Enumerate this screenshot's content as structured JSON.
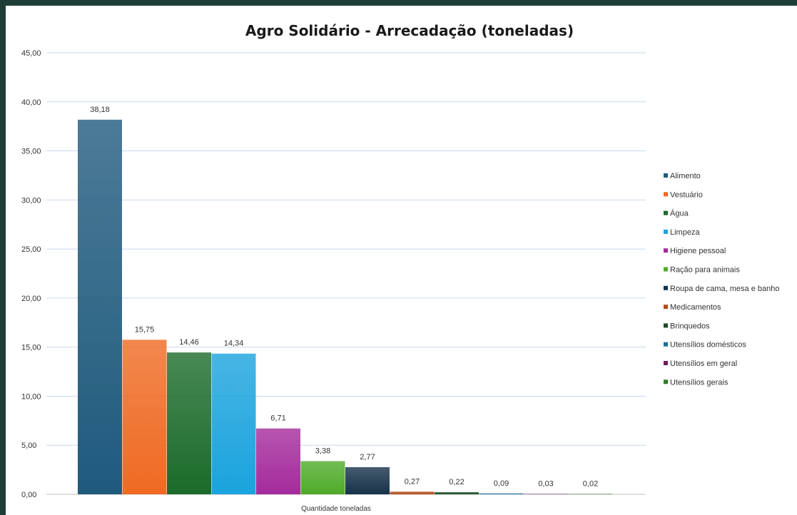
{
  "chart_data": {
    "type": "bar",
    "title": "Agro Solidário - Arrecadação (toneladas)",
    "xlabel": "Quantidade toneladas",
    "ylabel": "",
    "ylim": [
      0,
      45
    ],
    "yticks": [
      "0,00",
      "5,00",
      "10,00",
      "15,00",
      "20,00",
      "25,00",
      "30,00",
      "35,00",
      "40,00",
      "45,00"
    ],
    "grid": true,
    "legend_position": "right",
    "series": [
      {
        "name": "Alimento",
        "value": 38.18,
        "label": "38,18",
        "color": "#1f5a7d"
      },
      {
        "name": "Vestuário",
        "value": 15.75,
        "label": "15,75",
        "color": "#ef6a22"
      },
      {
        "name": "Água",
        "value": 14.46,
        "label": "14,46",
        "color": "#1b6b2a"
      },
      {
        "name": "Limpeza",
        "value": 14.34,
        "label": "14,34",
        "color": "#1aa3dd"
      },
      {
        "name": "Higiene pessoal",
        "value": 6.71,
        "label": "6,71",
        "color": "#a42b9c"
      },
      {
        "name": "Ração para animais",
        "value": 3.38,
        "label": "3,38",
        "color": "#4fab2a"
      },
      {
        "name": "Roupa de cama, mesa e banho",
        "value": 2.77,
        "label": "2,77",
        "color": "#17324a"
      },
      {
        "name": "Medicamentos",
        "value": 0.27,
        "label": "0,27",
        "color": "#b34b1a"
      },
      {
        "name": "Brinquedos",
        "value": 0.22,
        "label": "0,22",
        "color": "#1d4d2a"
      },
      {
        "name": "Utensílios domésticos",
        "value": 0.09,
        "label": "0,09",
        "color": "#1a6f99"
      },
      {
        "name": "Utensílios em geral",
        "value": 0.03,
        "label": "0,03",
        "color": "#6e1f5e"
      },
      {
        "name": "Utensílios gerais",
        "value": 0.02,
        "label": "0,02",
        "color": "#2f7a2a"
      }
    ]
  }
}
